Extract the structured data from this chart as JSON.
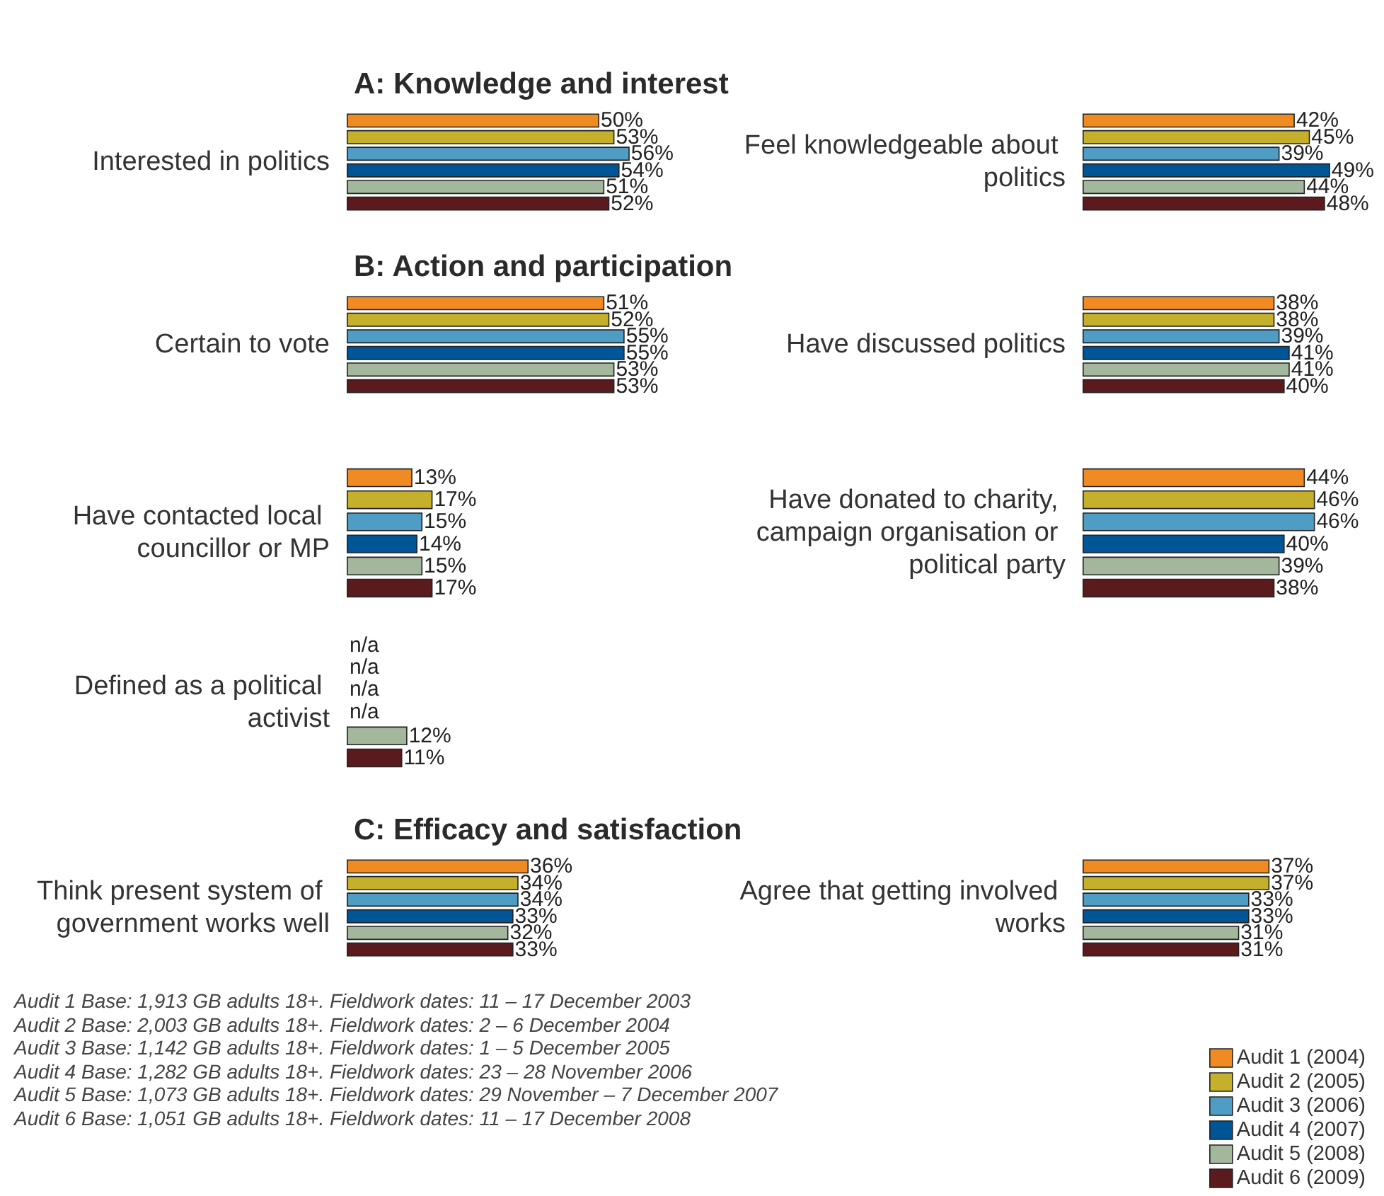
{
  "chart_data": [
    {
      "type": "bar",
      "orientation": "horizontal",
      "title": "A: Knowledge and interest",
      "categories": [
        "Interested in politics"
      ],
      "series": [
        {
          "color": "#f08a22",
          "values": [
            50
          ],
          "value_labels": [
            "50%"
          ]
        },
        {
          "color": "#c4b02a",
          "values": [
            53
          ],
          "value_labels": [
            "53%"
          ]
        },
        {
          "color": "#4f9cc4",
          "values": [
            56
          ],
          "value_labels": [
            "56%"
          ]
        },
        {
          "color": "#005596",
          "values": [
            54
          ],
          "value_labels": [
            "54%"
          ]
        },
        {
          "color": "#a3b79c",
          "values": [
            51
          ],
          "value_labels": [
            "51%"
          ]
        },
        {
          "color": "#5a1a1e",
          "values": [
            52
          ],
          "value_labels": [
            "52%"
          ]
        }
      ]
    },
    {
      "type": "bar",
      "orientation": "horizontal",
      "categories": [
        "Feel knowledgeable about politics"
      ],
      "series": [
        {
          "color": "#f08a22",
          "values": [
            42
          ],
          "value_labels": [
            "42%"
          ]
        },
        {
          "color": "#c4b02a",
          "values": [
            45
          ],
          "value_labels": [
            "45%"
          ]
        },
        {
          "color": "#4f9cc4",
          "values": [
            39
          ],
          "value_labels": [
            "39%"
          ]
        },
        {
          "color": "#005596",
          "values": [
            49
          ],
          "value_labels": [
            "49%"
          ]
        },
        {
          "color": "#a3b79c",
          "values": [
            44
          ],
          "value_labels": [
            "44%"
          ]
        },
        {
          "color": "#5a1a1e",
          "values": [
            48
          ],
          "value_labels": [
            "48%"
          ]
        }
      ]
    },
    {
      "type": "bar",
      "orientation": "horizontal",
      "title": "B: Action and participation",
      "categories": [
        "Certain to vote"
      ],
      "series": [
        {
          "color": "#f08a22",
          "values": [
            51
          ],
          "value_labels": [
            "51%"
          ]
        },
        {
          "color": "#c4b02a",
          "values": [
            52
          ],
          "value_labels": [
            "52%"
          ]
        },
        {
          "color": "#4f9cc4",
          "values": [
            55
          ],
          "value_labels": [
            "55%"
          ]
        },
        {
          "color": "#005596",
          "values": [
            55
          ],
          "value_labels": [
            "55%"
          ]
        },
        {
          "color": "#a3b79c",
          "values": [
            53
          ],
          "value_labels": [
            "53%"
          ]
        },
        {
          "color": "#5a1a1e",
          "values": [
            53
          ],
          "value_labels": [
            "53%"
          ]
        }
      ]
    },
    {
      "type": "bar",
      "orientation": "horizontal",
      "categories": [
        "Have discussed politics"
      ],
      "series": [
        {
          "color": "#f08a22",
          "values": [
            38
          ],
          "value_labels": [
            "38%"
          ]
        },
        {
          "color": "#c4b02a",
          "values": [
            38
          ],
          "value_labels": [
            "38%"
          ]
        },
        {
          "color": "#4f9cc4",
          "values": [
            39
          ],
          "value_labels": [
            "39%"
          ]
        },
        {
          "color": "#005596",
          "values": [
            41
          ],
          "value_labels": [
            "41%"
          ]
        },
        {
          "color": "#a3b79c",
          "values": [
            41
          ],
          "value_labels": [
            "41%"
          ]
        },
        {
          "color": "#5a1a1e",
          "values": [
            40
          ],
          "value_labels": [
            "40%"
          ]
        }
      ]
    },
    {
      "type": "bar",
      "orientation": "horizontal",
      "categories": [
        "Have contacted local councillor or MP"
      ],
      "series": [
        {
          "color": "#f08a22",
          "values": [
            13
          ],
          "value_labels": [
            "13%"
          ]
        },
        {
          "color": "#c4b02a",
          "values": [
            17
          ],
          "value_labels": [
            "17%"
          ]
        },
        {
          "color": "#4f9cc4",
          "values": [
            15
          ],
          "value_labels": [
            "15%"
          ]
        },
        {
          "color": "#005596",
          "values": [
            14
          ],
          "value_labels": [
            "14%"
          ]
        },
        {
          "color": "#a3b79c",
          "values": [
            15
          ],
          "value_labels": [
            "15%"
          ]
        },
        {
          "color": "#5a1a1e",
          "values": [
            17
          ],
          "value_labels": [
            "17%"
          ]
        }
      ]
    },
    {
      "type": "bar",
      "orientation": "horizontal",
      "categories": [
        "Have donated to charity, campaign organisation or political party"
      ],
      "series": [
        {
          "color": "#f08a22",
          "values": [
            44
          ],
          "value_labels": [
            "44%"
          ]
        },
        {
          "color": "#c4b02a",
          "values": [
            46
          ],
          "value_labels": [
            "46%"
          ]
        },
        {
          "color": "#4f9cc4",
          "values": [
            46
          ],
          "value_labels": [
            "46%"
          ]
        },
        {
          "color": "#005596",
          "values": [
            40
          ],
          "value_labels": [
            "40%"
          ]
        },
        {
          "color": "#a3b79c",
          "values": [
            39
          ],
          "value_labels": [
            "39%"
          ]
        },
        {
          "color": "#5a1a1e",
          "values": [
            38
          ],
          "value_labels": [
            "38%"
          ]
        }
      ]
    },
    {
      "type": "bar",
      "orientation": "horizontal",
      "categories": [
        "Defined as a political activist"
      ],
      "series": [
        {
          "color": "#f08a22",
          "values": [
            null
          ],
          "value_labels": [
            "n/a"
          ]
        },
        {
          "color": "#c4b02a",
          "values": [
            null
          ],
          "value_labels": [
            "n/a"
          ]
        },
        {
          "color": "#4f9cc4",
          "values": [
            null
          ],
          "value_labels": [
            "n/a"
          ]
        },
        {
          "color": "#005596",
          "values": [
            null
          ],
          "value_labels": [
            "n/a"
          ]
        },
        {
          "color": "#a3b79c",
          "values": [
            12
          ],
          "value_labels": [
            "12%"
          ]
        },
        {
          "color": "#5a1a1e",
          "values": [
            11
          ],
          "value_labels": [
            "11%"
          ]
        }
      ]
    },
    {
      "type": "bar",
      "orientation": "horizontal",
      "title": "C: Efficacy and satisfaction",
      "categories": [
        "Think present system of government works well"
      ],
      "series": [
        {
          "color": "#f08a22",
          "values": [
            36
          ],
          "value_labels": [
            "36%"
          ]
        },
        {
          "color": "#c4b02a",
          "values": [
            34
          ],
          "value_labels": [
            "34%"
          ]
        },
        {
          "color": "#4f9cc4",
          "values": [
            34
          ],
          "value_labels": [
            "34%"
          ]
        },
        {
          "color": "#005596",
          "values": [
            33
          ],
          "value_labels": [
            "33%"
          ]
        },
        {
          "color": "#a3b79c",
          "values": [
            32
          ],
          "value_labels": [
            "32%"
          ]
        },
        {
          "color": "#5a1a1e",
          "values": [
            33
          ],
          "value_labels": [
            "33%"
          ]
        }
      ]
    },
    {
      "type": "bar",
      "orientation": "horizontal",
      "categories": [
        "Agree that getting involved works"
      ],
      "legend": "bottom right",
      "series": [
        {
          "name": "Audit 1 (2004)",
          "color": "#f08a22",
          "values": [
            37
          ],
          "value_labels": [
            "37%"
          ]
        },
        {
          "name": "Audit 2 (2005)",
          "color": "#c4b02a",
          "values": [
            37
          ],
          "value_labels": [
            "37%"
          ]
        },
        {
          "name": "Audit 3 (2006)",
          "color": "#4f9cc4",
          "values": [
            33
          ],
          "value_labels": [
            "33%"
          ]
        },
        {
          "name": "Audit 4 (2007)",
          "color": "#005596",
          "values": [
            33
          ],
          "value_labels": [
            "33%"
          ]
        },
        {
          "name": "Audit 5 (2008)",
          "color": "#a3b79c",
          "values": [
            31
          ],
          "value_labels": [
            "31%"
          ]
        },
        {
          "name": "Audit 6 (2009)",
          "color": "#5a1a1e",
          "values": [
            31
          ],
          "value_labels": [
            "31%"
          ]
        }
      ],
      "annotations": [
        "Audit 1 Base: 1,913 GB adults 18+. Fieldwork dates: 11 – 17 December 2003",
        "Audit 2 Base: 2,003 GB adults 18+. Fieldwork dates: 2 – 6 December 2004",
        "Audit 3 Base: 1,142 GB adults 18+. Fieldwork dates: 1 – 5 December 2005",
        "Audit 4 Base: 1,282 GB adults 18+. Fieldwork dates: 23 – 28 November 2006",
        "Audit 5 Base: 1,073 GB adults 18+. Fieldwork dates: 29 November – 7 December 2007",
        "Audit 6 Base: 1,051 GB adults 18+. Fieldwork dates: 11 – 17 December 2008"
      ]
    }
  ]
}
